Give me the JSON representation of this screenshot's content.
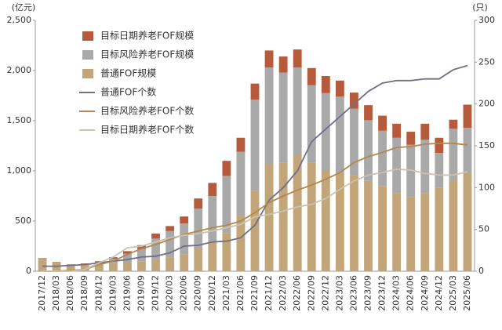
{
  "chart_data": {
    "type": "bar-line",
    "y_unit": "(亿元)",
    "y2_unit": "(只)",
    "categories": [
      "2017/12",
      "2018/03",
      "2018/06",
      "2018/09",
      "2018/12",
      "2019/03",
      "2019/06",
      "2019/09",
      "2019/12",
      "2020/03",
      "2020/06",
      "2020/09",
      "2020/12",
      "2021/03",
      "2021/06",
      "2021/09",
      "2021/12",
      "2022/03",
      "2022/06",
      "2022/09",
      "2022/12",
      "2023/03",
      "2023/06",
      "2023/09",
      "2023/12",
      "2024/03",
      "2024/06",
      "2024/09",
      "2024/12",
      "2025/03",
      "2025/06"
    ],
    "series": [
      {
        "name": "目标日期养老FOF规模",
        "type": "bar",
        "color": "#b65a3c",
        "values": [
          0,
          0,
          0,
          5,
          10,
          15,
          25,
          40,
          50,
          50,
          70,
          100,
          130,
          150,
          140,
          160,
          170,
          160,
          180,
          170,
          170,
          160,
          160,
          150,
          150,
          140,
          130,
          160,
          150,
          90,
          230
        ]
      },
      {
        "name": "目标风险养老FOF规模",
        "type": "bar",
        "color": "#a9a9a9",
        "values": [
          0,
          0,
          0,
          8,
          20,
          45,
          85,
          120,
          205,
          260,
          305,
          395,
          450,
          570,
          640,
          910,
          960,
          900,
          870,
          775,
          775,
          760,
          660,
          605,
          550,
          550,
          520,
          530,
          350,
          510,
          450
        ]
      },
      {
        "name": "普通FOF规模",
        "type": "bar",
        "color": "#c2a67a",
        "values": [
          133,
          94,
          70,
          65,
          70,
          80,
          90,
          100,
          120,
          140,
          170,
          230,
          300,
          380,
          550,
          800,
          1070,
          1080,
          1160,
          1080,
          1000,
          980,
          960,
          900,
          850,
          780,
          740,
          780,
          830,
          910,
          980
        ]
      },
      {
        "name": "普通FOF个数",
        "type": "line",
        "axis": "y2",
        "color": "#6e7088",
        "values": [
          6,
          6,
          7,
          8,
          10,
          12,
          14,
          17,
          18,
          22,
          30,
          31,
          35,
          36,
          40,
          55,
          85,
          100,
          120,
          155,
          170,
          185,
          200,
          215,
          225,
          228,
          228,
          230,
          230,
          241,
          246
        ]
      },
      {
        "name": "目标风险养老FOF个数",
        "type": "line",
        "axis": "y2",
        "color": "#b3874f",
        "values": [
          0,
          0,
          1,
          2,
          8,
          12,
          20,
          27,
          32,
          38,
          44,
          48,
          52,
          55,
          60,
          70,
          82,
          90,
          97,
          103,
          110,
          118,
          130,
          137,
          142,
          148,
          149,
          152,
          153,
          153,
          151
        ]
      },
      {
        "name": "目标日期养老FOF个数",
        "type": "line",
        "axis": "y2",
        "color": "#cbc2b1",
        "values": [
          0,
          0,
          0,
          2,
          10,
          17,
          28,
          30,
          35,
          40,
          43,
          45,
          48,
          52,
          56,
          65,
          68,
          72,
          77,
          80,
          87,
          98,
          108,
          115,
          118,
          122,
          121,
          117,
          115,
          115,
          119
        ]
      }
    ],
    "ylim": [
      0,
      2500
    ],
    "yticks": [
      0,
      500,
      {
        "value": 1000,
        "label": "1,000"
      },
      {
        "value": 1500,
        "label": "1,500"
      },
      {
        "value": 2000,
        "label": "2,000"
      },
      {
        "value": 2500,
        "label": "2,500"
      }
    ],
    "y2lim": [
      0,
      300
    ],
    "y2ticks": [
      0,
      50,
      100,
      150,
      200,
      250,
      300
    ],
    "legend": "top-left"
  }
}
